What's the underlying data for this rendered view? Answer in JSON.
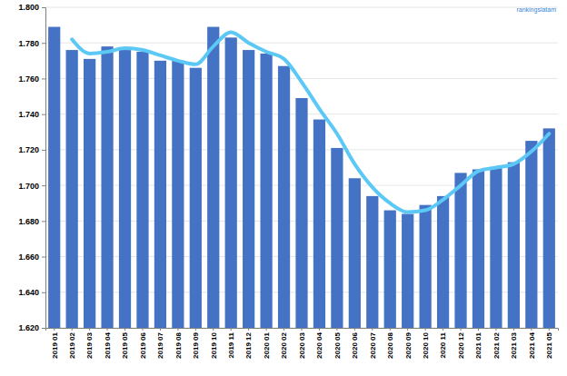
{
  "chart_data": {
    "type": "bar",
    "categories": [
      "2019 01",
      "2019 02",
      "2019 03",
      "2019 04",
      "2019 05",
      "2019 06",
      "2019 07",
      "2019 08",
      "2019 09",
      "2019 10",
      "2019 11",
      "2019 12",
      "2020 01",
      "2020 02",
      "2020 03",
      "2020 04",
      "2020 05",
      "2020 06",
      "2020 07",
      "2020 08",
      "2020 09",
      "2020 10",
      "2020 11",
      "2020 12",
      "2021 01",
      "2021 02",
      "2021 03",
      "2021 04",
      "2021 05"
    ],
    "series": [
      {
        "type": "bar",
        "color": "#4472c4",
        "values": [
          1.789,
          1.776,
          1.771,
          1.778,
          1.776,
          1.775,
          1.77,
          1.77,
          1.766,
          1.789,
          1.783,
          1.776,
          1.774,
          1.767,
          1.749,
          1.737,
          1.721,
          1.704,
          1.694,
          1.686,
          1.684,
          1.689,
          1.694,
          1.707,
          1.709,
          1.71,
          1.713,
          1.725,
          1.732
        ]
      },
      {
        "type": "line",
        "color": "#5bc8f5",
        "values": [
          null,
          1.782,
          1.774,
          1.775,
          1.777,
          1.776,
          1.773,
          1.77,
          1.768,
          1.778,
          1.786,
          1.78,
          1.775,
          1.771,
          1.758,
          1.743,
          1.729,
          1.712,
          1.699,
          1.69,
          1.685,
          1.686,
          1.692,
          1.7,
          1.708,
          1.71,
          1.712,
          1.719,
          1.729
        ]
      }
    ],
    "ylim": [
      1.62,
      1.8
    ],
    "yticks": [
      {
        "value": 1.62,
        "label": "1.620"
      },
      {
        "value": 1.64,
        "label": "1.640"
      },
      {
        "value": 1.66,
        "label": "1.660"
      },
      {
        "value": 1.68,
        "label": "1.680"
      },
      {
        "value": 1.7,
        "label": "1.700"
      },
      {
        "value": 1.72,
        "label": "1.720"
      },
      {
        "value": 1.74,
        "label": "1.740"
      },
      {
        "value": 1.76,
        "label": "1.760"
      },
      {
        "value": 1.78,
        "label": "1.780"
      },
      {
        "value": 1.8,
        "label": "1.800"
      }
    ],
    "grid": true,
    "annotations": [
      "rankingslatam"
    ]
  }
}
